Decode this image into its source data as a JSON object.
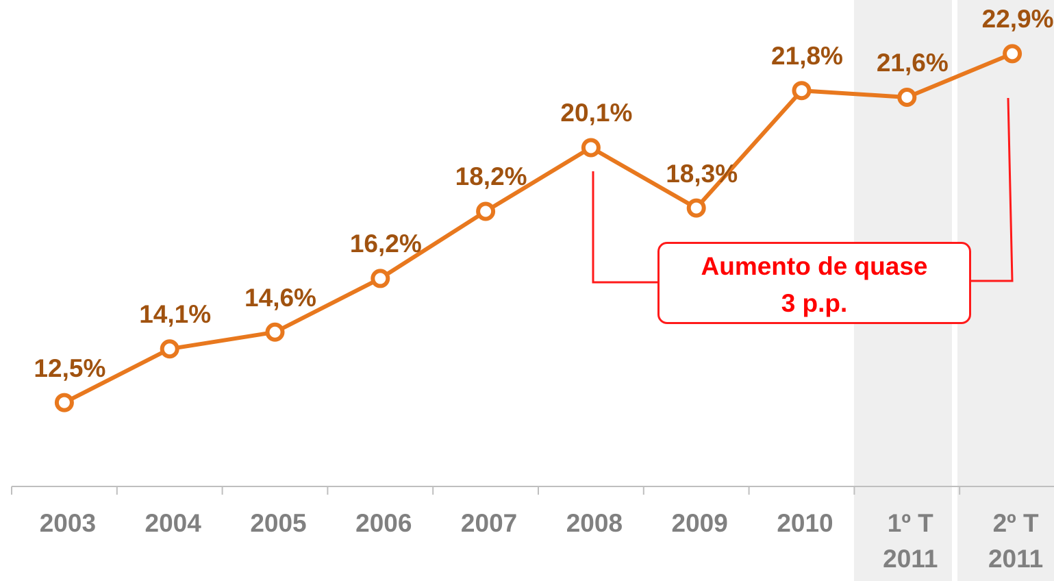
{
  "chart_data": {
    "type": "line",
    "categories": [
      "2003",
      "2004",
      "2005",
      "2006",
      "2007",
      "2008",
      "2009",
      "2010",
      "1º T 2011",
      "2º T 2011"
    ],
    "series": [
      {
        "name": null,
        "color": "#e8781e",
        "values": [
          12.5,
          14.1,
          14.6,
          16.2,
          18.2,
          20.1,
          18.3,
          21.8,
          21.6,
          22.9
        ],
        "value_labels": [
          "12,5%",
          "14,1%",
          "14,6%",
          "16,2%",
          "18,2%",
          "20,1%",
          "18,3%",
          "21,8%",
          "21,6%",
          "22,9%"
        ],
        "label_color": "#a0520f"
      }
    ],
    "ylim": [
      10,
      24.5
    ],
    "annotation": "Aumento de quase 3 p.p."
  }
}
